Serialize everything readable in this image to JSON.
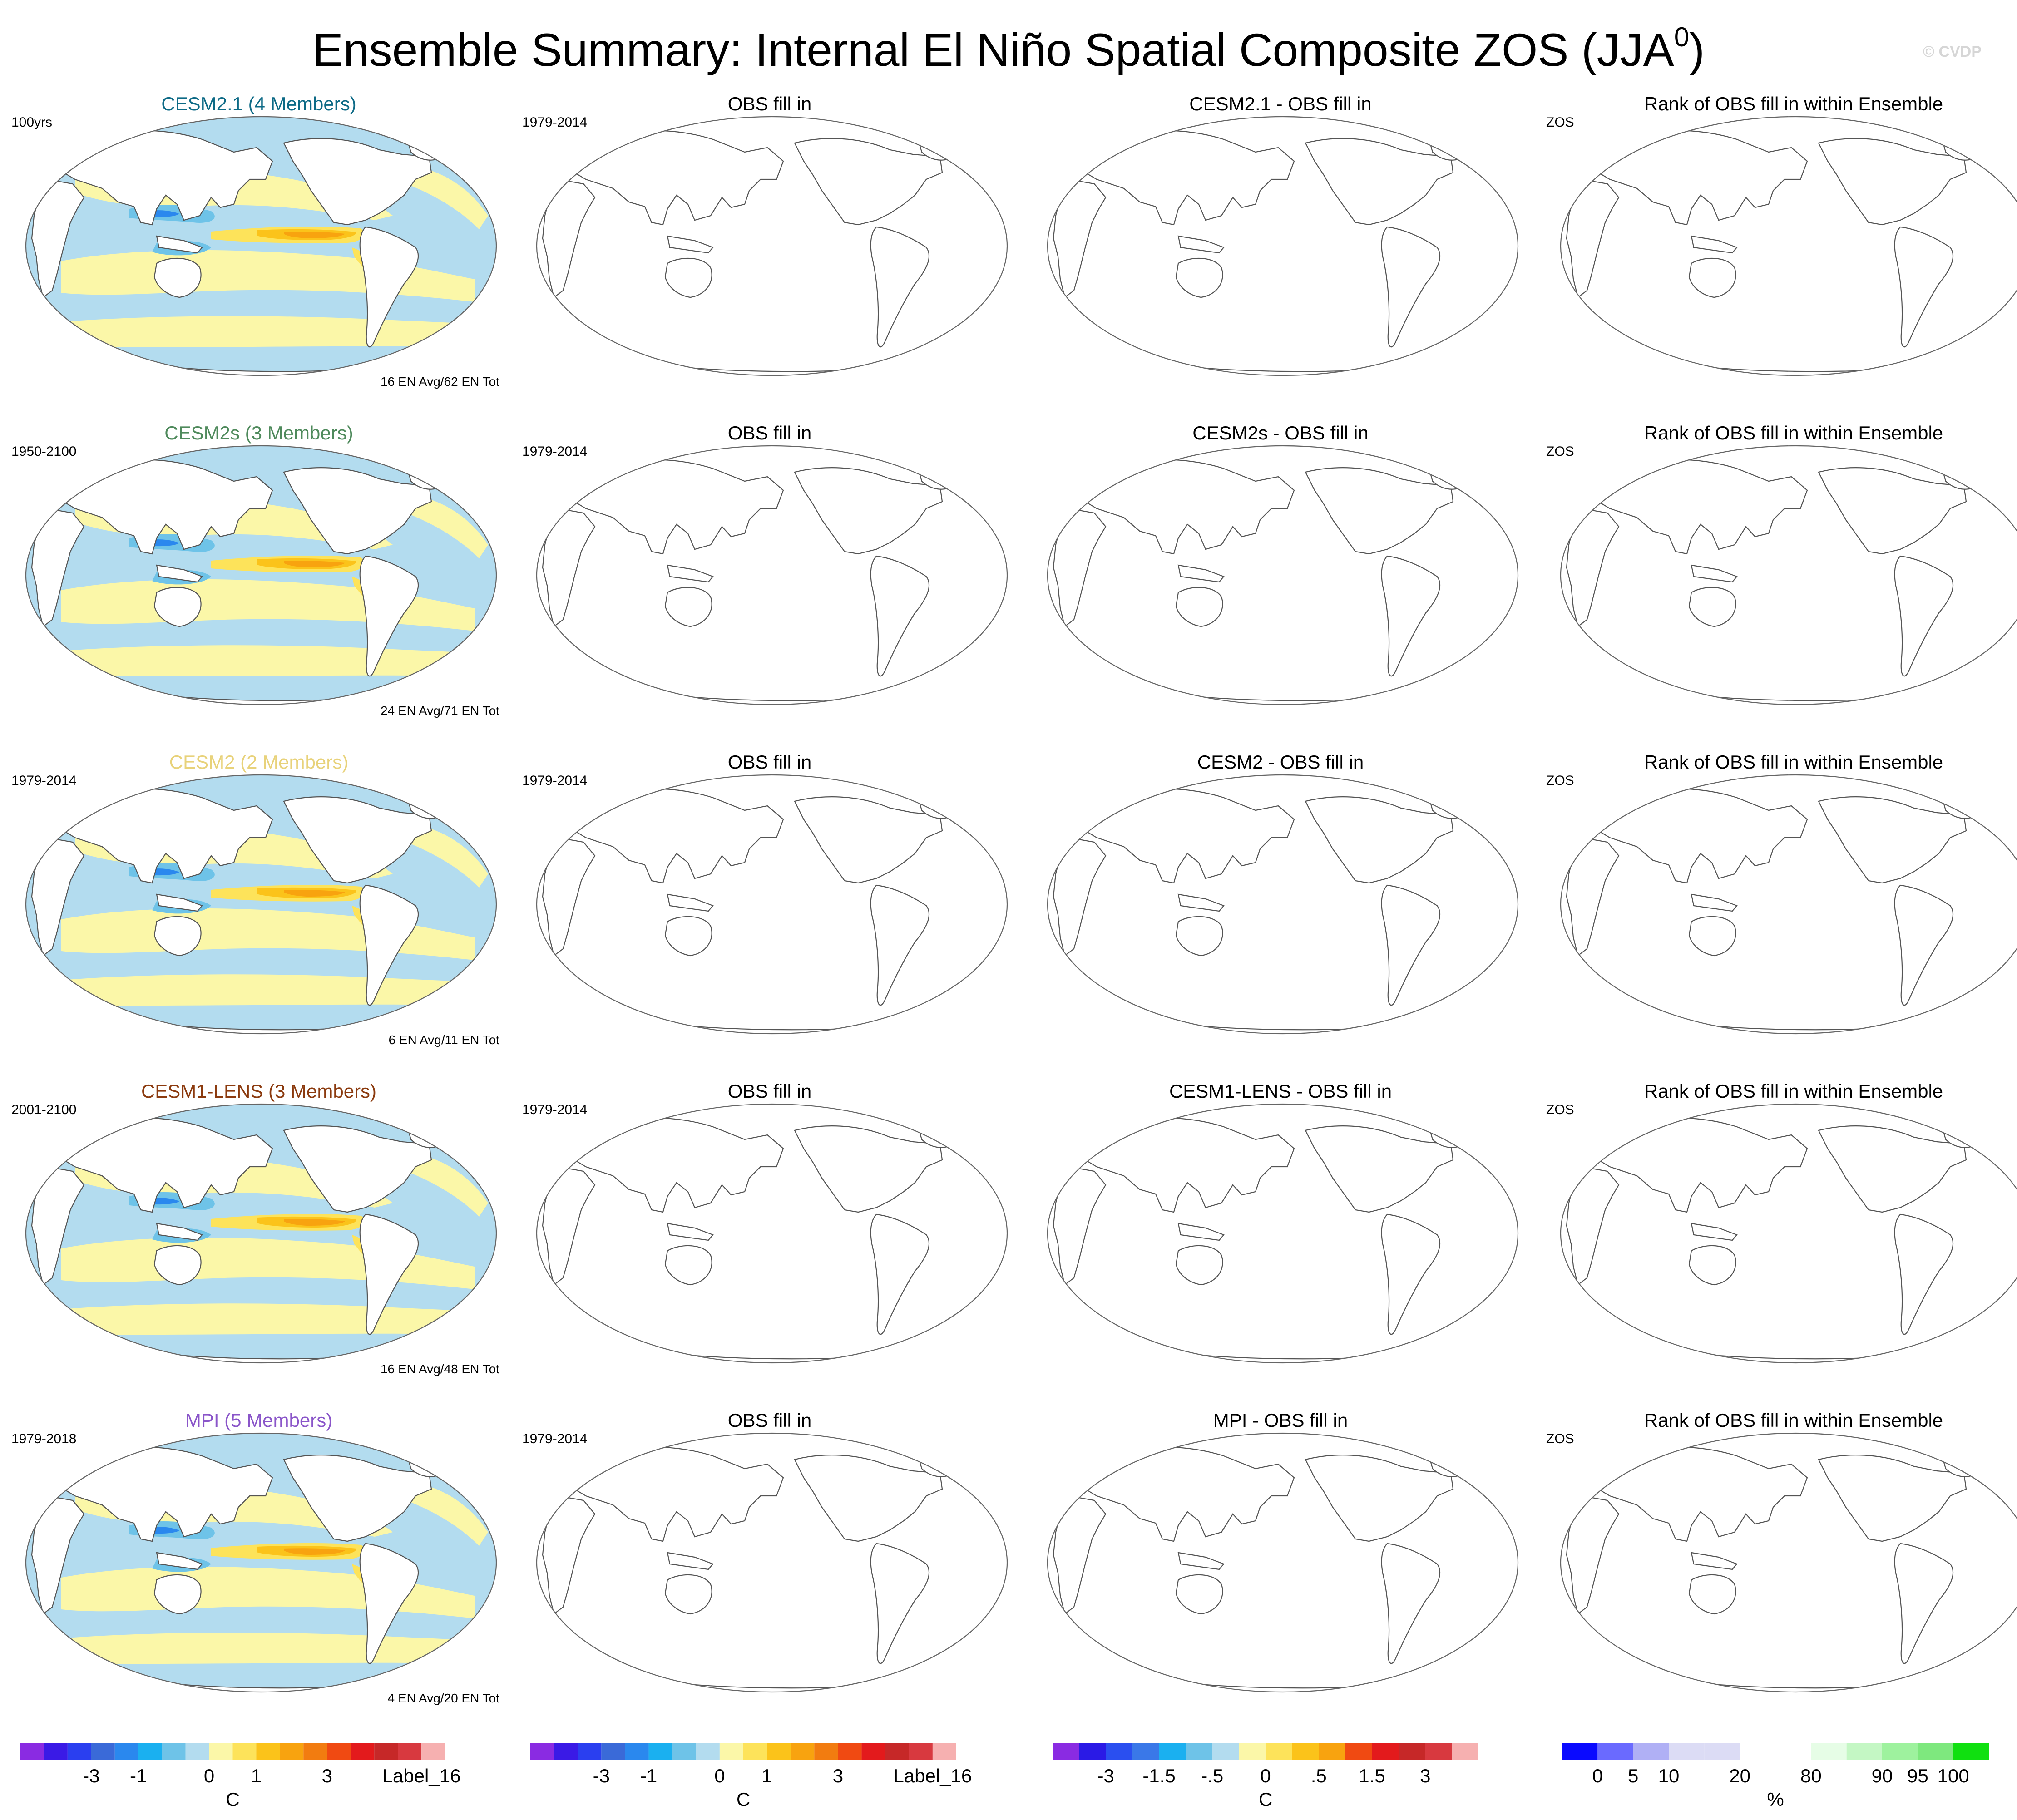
{
  "figure": {
    "title": "Ensemble Summary: Internal El Niño Spatial Composite ZOS (JJA",
    "title_sup": "0",
    "title_close": ")",
    "watermark": "© CVDP"
  },
  "rows": [
    {
      "model": {
        "title": "CESM2.1 (4 Members)",
        "color": "#0d6a86",
        "left": "100yrs",
        "right": "16 EN Avg/62 EN Tot"
      },
      "obs": {
        "title": "OBS fill in",
        "left": "1979-2014"
      },
      "diff": {
        "title": "CESM2.1 - OBS fill in"
      },
      "rank": {
        "title": "Rank of OBS fill in within Ensemble",
        "left": "ZOS"
      }
    },
    {
      "model": {
        "title": "CESM2s (3 Members)",
        "color": "#4f8a5c",
        "left": "1950-2100",
        "right": "24 EN Avg/71 EN Tot"
      },
      "obs": {
        "title": "OBS fill in",
        "left": "1979-2014"
      },
      "diff": {
        "title": "CESM2s - OBS fill in"
      },
      "rank": {
        "title": "Rank of OBS fill in within Ensemble",
        "left": "ZOS"
      }
    },
    {
      "model": {
        "title": "CESM2 (2 Members)",
        "color": "#e8d27a",
        "left": "1979-2014",
        "right": "6 EN Avg/11 EN Tot"
      },
      "obs": {
        "title": "OBS fill in",
        "left": "1979-2014"
      },
      "diff": {
        "title": "CESM2 - OBS fill in"
      },
      "rank": {
        "title": "Rank of OBS fill in within Ensemble",
        "left": "ZOS"
      }
    },
    {
      "model": {
        "title": "CESM1-LENS (3 Members)",
        "color": "#8b3a0e",
        "left": "2001-2100",
        "right": "16 EN Avg/48 EN Tot"
      },
      "obs": {
        "title": "OBS fill in",
        "left": "1979-2014"
      },
      "diff": {
        "title": "CESM1-LENS - OBS fill in"
      },
      "rank": {
        "title": "Rank of OBS fill in within Ensemble",
        "left": "ZOS"
      }
    },
    {
      "model": {
        "title": "MPI (5 Members)",
        "color": "#8a55c9",
        "left": "1979-2018",
        "right": "4 EN Avg/20 EN Tot"
      },
      "obs": {
        "title": "OBS fill in",
        "left": "1979-2014"
      },
      "diff": {
        "title": "MPI - OBS fill in"
      },
      "rank": {
        "title": "Rank of OBS fill in within Ensemble",
        "left": "ZOS"
      }
    }
  ],
  "colorbars": [
    {
      "colors": [
        "#8a2be2",
        "#3a1ae6",
        "#2a3ff0",
        "#3a6ad8",
        "#2a88ee",
        "#1ab0f0",
        "#6ec3e8",
        "#b3dcef",
        "#fbf7a8",
        "#fde35a",
        "#fbc31a",
        "#f8a30f",
        "#f27c10",
        "#f04a12",
        "#e31a1c",
        "#c62828",
        "#d8393f",
        "#f6b0b0"
      ],
      "ticks": [
        "-3",
        "-1",
        "0",
        "1",
        "3",
        "Label_16"
      ],
      "tick_boundaries": [
        3,
        5,
        8,
        10,
        13,
        17
      ],
      "unit": "C"
    },
    {
      "colors": [
        "#8a2be2",
        "#3a1ae6",
        "#2a3ff0",
        "#3a6ad8",
        "#2a88ee",
        "#1ab0f0",
        "#6ec3e8",
        "#b3dcef",
        "#fbf7a8",
        "#fde35a",
        "#fbc31a",
        "#f8a30f",
        "#f27c10",
        "#f04a12",
        "#e31a1c",
        "#c62828",
        "#d8393f",
        "#f6b0b0"
      ],
      "ticks": [
        "-3",
        "-1",
        "0",
        "1",
        "3",
        "Label_16"
      ],
      "tick_boundaries": [
        3,
        5,
        8,
        10,
        13,
        17
      ],
      "unit": "C"
    },
    {
      "colors": [
        "#8a2be2",
        "#2a1ae6",
        "#2a4ff0",
        "#3a78e8",
        "#1ab0f0",
        "#6ec3e8",
        "#b3dcef",
        "#fbf7a8",
        "#fde35a",
        "#fbc31a",
        "#f8a30f",
        "#f04a12",
        "#e31a1c",
        "#c62828",
        "#d8393f",
        "#f6b0b0"
      ],
      "ticks": [
        "-3",
        "-1.5",
        "-.5",
        "0",
        ".5",
        "1.5",
        "3"
      ],
      "tick_boundaries": [
        2,
        4,
        6,
        8,
        10,
        12,
        14
      ],
      "unit": "C"
    },
    {
      "colors": [
        "#0a0aff",
        "#6a6aff",
        "#b0b0f5",
        "#dcdcf5",
        "#dcdcf5",
        "#ffffff",
        "#ffffff",
        "#e6fde6",
        "#c4f7c4",
        "#9ef29e",
        "#7ee87e",
        "#10e010"
      ],
      "ticks": [
        "0",
        "5",
        "10",
        "20",
        "80",
        "90",
        "95",
        "100"
      ],
      "tick_boundaries": [
        1,
        2,
        3,
        5,
        7,
        9,
        10,
        11
      ],
      "unit": "%"
    }
  ]
}
